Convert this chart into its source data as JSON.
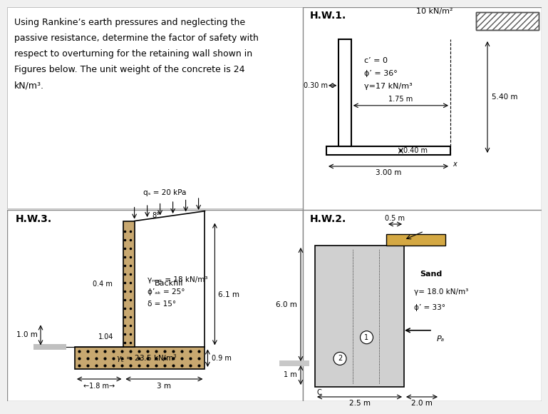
{
  "bg_color": "#f0f0f0",
  "panel_bg": "#ffffff",
  "text_color": "#000000",
  "gray_fill": "#b0b0b0",
  "dark_gray": "#808080",
  "hatch_color": "#555555",
  "soil_color": "#c8a870",
  "concrete_color": "#d0d0d0",
  "sand_color": "#e8d090",
  "hw1_label": "H.W.1.",
  "hw2_label": "H.W.2.",
  "hw3_label": "H.W.3.",
  "hw1_surcharge": "10 kN/m²",
  "hw1_c": "c’ = 0",
  "hw1_phi": "ϕ’ = 36°",
  "hw1_gamma": "γ=17 kN/m³",
  "hw1_dim1": "0.30 m",
  "hw1_dim2": "1.75 m",
  "hw1_dim3": "0.40 m",
  "hw1_dim4": "3.00 m",
  "hw1_dim5": "5.40 m",
  "hw3_qs": "qₛ = 20 kPa",
  "hw3_dim1": "0.4 m",
  "hw3_angle": "8°",
  "hw3_gamma": "γₘₐₖ = 18 kN/m³",
  "hw3_phi": "ϕ’ₐₖ = 25°",
  "hw3_delta": "δ = 15°",
  "hw3_backfill": "Backfill",
  "hw3_dim_h": "6.1 m",
  "hw3_dim_w1": "1.8 m",
  "hw3_dim_w2": "3 m",
  "hw3_dim_bot": "1.0 m",
  "hw3_dim_foot": "0.9 m",
  "hw3_dim_stem": "1.04",
  "hw2_sand": "Sand",
  "hw2_gamma": "γ= 18.0 kN/m³",
  "hw2_phi": "ϕ’ = 33°",
  "hw2_dim_h": "6.0 m",
  "hw2_dim_w": "2.5 m",
  "hw2_dim_top": "0.5 m",
  "hw2_dim_bot": "2.0 m",
  "hw2_dim_1m": "1 m",
  "hw2_label1": "1",
  "hw2_label2": "2",
  "hw2_Pa": "Pₐ"
}
